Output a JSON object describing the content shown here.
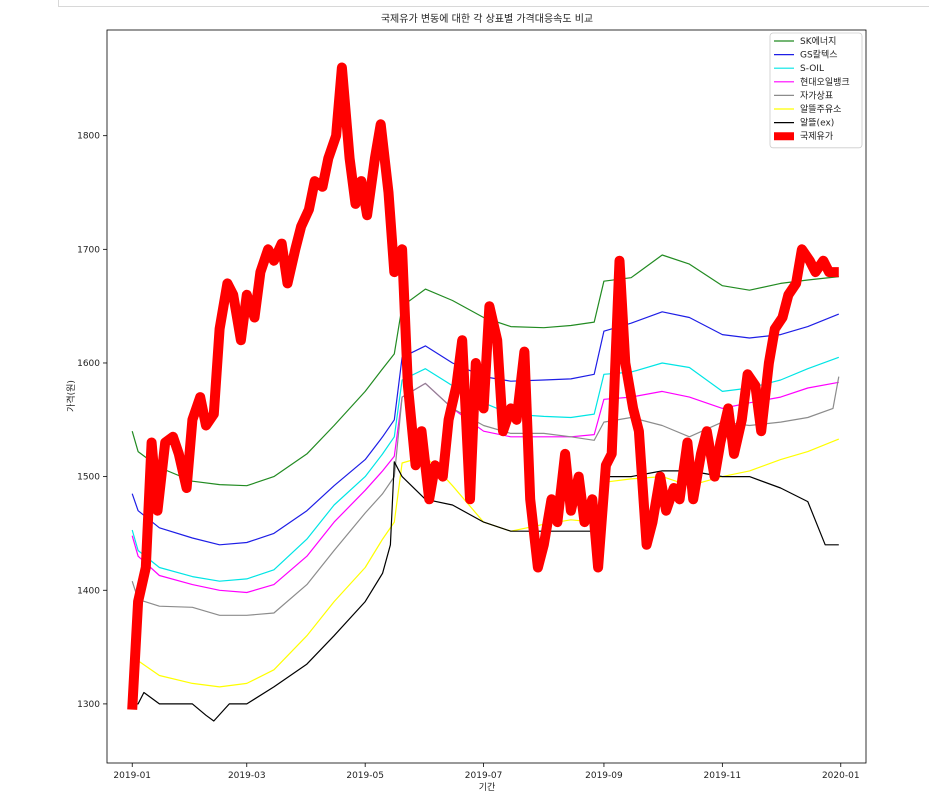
{
  "chart_data": {
    "type": "line",
    "title": "국제유가 변동에 대한 각 상표별 가격대응속도 비교",
    "xlabel": "기간",
    "ylabel": "가격(원)",
    "xlim": [
      "2018-12-19",
      "2020-01-14"
    ],
    "ylim": [
      1248,
      1893
    ],
    "xticks": [
      "2019-01",
      "2019-03",
      "2019-05",
      "2019-07",
      "2019-09",
      "2019-11",
      "2020-01"
    ],
    "yticks": [
      1300,
      1400,
      1500,
      1600,
      1700,
      1800
    ],
    "grid": false,
    "legend_position": "top-right",
    "series": [
      {
        "name": "SK에너지",
        "color": "#228B22",
        "width": 1.2,
        "x": [
          "2019-01-01",
          "2019-01-04",
          "2019-01-15",
          "2019-02-01",
          "2019-02-15",
          "2019-03-01",
          "2019-03-15",
          "2019-04-01",
          "2019-04-15",
          "2019-05-01",
          "2019-05-10",
          "2019-05-16",
          "2019-05-20",
          "2019-06-01",
          "2019-06-15",
          "2019-07-01",
          "2019-07-15",
          "2019-08-01",
          "2019-08-15",
          "2019-08-27",
          "2019-09-01",
          "2019-09-15",
          "2019-10-01",
          "2019-10-15",
          "2019-11-01",
          "2019-11-15",
          "2019-12-01",
          "2019-12-15",
          "2019-12-31"
        ],
        "y": [
          1540,
          1522,
          1508,
          1496,
          1493,
          1492,
          1500,
          1520,
          1545,
          1575,
          1595,
          1608,
          1650,
          1665,
          1655,
          1640,
          1632,
          1631,
          1633,
          1636,
          1672,
          1675,
          1695,
          1687,
          1668,
          1664,
          1670,
          1673,
          1676
        ]
      },
      {
        "name": "GS칼텍스",
        "color": "#1E1EE6",
        "width": 1.2,
        "x": [
          "2019-01-01",
          "2019-01-04",
          "2019-01-15",
          "2019-02-01",
          "2019-02-15",
          "2019-03-01",
          "2019-03-15",
          "2019-04-01",
          "2019-04-15",
          "2019-05-01",
          "2019-05-10",
          "2019-05-16",
          "2019-05-20",
          "2019-06-01",
          "2019-06-15",
          "2019-07-01",
          "2019-07-15",
          "2019-08-01",
          "2019-08-15",
          "2019-08-27",
          "2019-09-01",
          "2019-09-15",
          "2019-10-01",
          "2019-10-15",
          "2019-11-01",
          "2019-11-15",
          "2019-12-01",
          "2019-12-15",
          "2019-12-31"
        ],
        "y": [
          1485,
          1470,
          1455,
          1446,
          1440,
          1442,
          1450,
          1470,
          1492,
          1515,
          1535,
          1550,
          1605,
          1615,
          1600,
          1588,
          1584,
          1585,
          1586,
          1590,
          1628,
          1635,
          1645,
          1640,
          1625,
          1622,
          1625,
          1632,
          1643
        ]
      },
      {
        "name": "S-OIL",
        "color": "#00E5E5",
        "width": 1.2,
        "x": [
          "2019-01-01",
          "2019-01-04",
          "2019-01-15",
          "2019-02-01",
          "2019-02-15",
          "2019-03-01",
          "2019-03-15",
          "2019-04-01",
          "2019-04-15",
          "2019-05-01",
          "2019-05-10",
          "2019-05-16",
          "2019-05-20",
          "2019-06-01",
          "2019-06-15",
          "2019-07-01",
          "2019-07-15",
          "2019-08-01",
          "2019-08-15",
          "2019-08-27",
          "2019-09-01",
          "2019-09-15",
          "2019-10-01",
          "2019-10-15",
          "2019-11-01",
          "2019-11-15",
          "2019-12-01",
          "2019-12-15",
          "2019-12-31"
        ],
        "y": [
          1453,
          1435,
          1420,
          1412,
          1408,
          1410,
          1418,
          1445,
          1475,
          1500,
          1520,
          1535,
          1585,
          1595,
          1580,
          1565,
          1555,
          1553,
          1552,
          1555,
          1590,
          1592,
          1600,
          1596,
          1575,
          1578,
          1585,
          1595,
          1605
        ]
      },
      {
        "name": "현대오일뱅크",
        "color": "#FF00FF",
        "width": 1.2,
        "x": [
          "2019-01-01",
          "2019-01-04",
          "2019-01-15",
          "2019-02-01",
          "2019-02-15",
          "2019-03-01",
          "2019-03-15",
          "2019-04-01",
          "2019-04-15",
          "2019-05-01",
          "2019-05-10",
          "2019-05-16",
          "2019-05-20",
          "2019-06-01",
          "2019-06-15",
          "2019-07-01",
          "2019-07-15",
          "2019-08-01",
          "2019-08-15",
          "2019-08-27",
          "2019-09-01",
          "2019-09-15",
          "2019-10-01",
          "2019-10-15",
          "2019-11-01",
          "2019-11-15",
          "2019-12-01",
          "2019-12-15",
          "2019-12-31"
        ],
        "y": [
          1448,
          1430,
          1413,
          1405,
          1400,
          1398,
          1405,
          1430,
          1460,
          1488,
          1505,
          1518,
          1570,
          1582,
          1560,
          1540,
          1535,
          1535,
          1535,
          1537,
          1568,
          1570,
          1575,
          1570,
          1560,
          1565,
          1570,
          1578,
          1583
        ]
      },
      {
        "name": "자가상표",
        "color": "#8C8C8C",
        "width": 1.2,
        "x": [
          "2019-01-01",
          "2019-01-04",
          "2019-01-15",
          "2019-02-01",
          "2019-02-15",
          "2019-03-01",
          "2019-03-15",
          "2019-04-01",
          "2019-04-15",
          "2019-05-01",
          "2019-05-10",
          "2019-05-16",
          "2019-05-20",
          "2019-06-01",
          "2019-06-15",
          "2019-07-01",
          "2019-07-15",
          "2019-08-01",
          "2019-08-15",
          "2019-08-27",
          "2019-09-01",
          "2019-09-15",
          "2019-10-01",
          "2019-10-15",
          "2019-11-01",
          "2019-11-15",
          "2019-12-01",
          "2019-12-15",
          "2019-12-28",
          "2019-12-31"
        ],
        "y": [
          1408,
          1392,
          1386,
          1385,
          1378,
          1378,
          1380,
          1405,
          1435,
          1468,
          1485,
          1500,
          1570,
          1582,
          1560,
          1545,
          1538,
          1538,
          1535,
          1532,
          1548,
          1552,
          1545,
          1535,
          1548,
          1545,
          1548,
          1552,
          1560,
          1588
        ]
      },
      {
        "name": "알뜰주유소",
        "color": "#FFFF00",
        "width": 1.2,
        "x": [
          "2019-01-01",
          "2019-01-04",
          "2019-01-15",
          "2019-02-01",
          "2019-02-15",
          "2019-03-01",
          "2019-03-15",
          "2019-04-01",
          "2019-04-15",
          "2019-05-01",
          "2019-05-10",
          "2019-05-16",
          "2019-05-20",
          "2019-06-01",
          "2019-06-15",
          "2019-07-01",
          "2019-07-15",
          "2019-08-01",
          "2019-08-15",
          "2019-08-27",
          "2019-09-01",
          "2019-09-15",
          "2019-10-01",
          "2019-10-15",
          "2019-11-01",
          "2019-11-15",
          "2019-12-01",
          "2019-12-15",
          "2019-12-31"
        ],
        "y": [
          1350,
          1338,
          1325,
          1318,
          1315,
          1318,
          1330,
          1360,
          1390,
          1420,
          1445,
          1460,
          1512,
          1518,
          1492,
          1460,
          1452,
          1458,
          1462,
          1460,
          1495,
          1498,
          1500,
          1492,
          1500,
          1505,
          1515,
          1522,
          1533
        ]
      },
      {
        "name": "알뜰(ex)",
        "color": "#000000",
        "width": 1.2,
        "x": [
          "2019-01-01",
          "2019-01-04",
          "2019-01-07",
          "2019-01-15",
          "2019-02-01",
          "2019-02-08",
          "2019-02-12",
          "2019-02-20",
          "2019-03-01",
          "2019-03-15",
          "2019-04-01",
          "2019-04-15",
          "2019-05-01",
          "2019-05-10",
          "2019-05-14",
          "2019-05-16",
          "2019-05-20",
          "2019-06-01",
          "2019-06-15",
          "2019-07-01",
          "2019-07-15",
          "2019-08-01",
          "2019-08-15",
          "2019-08-27",
          "2019-09-01",
          "2019-09-15",
          "2019-10-01",
          "2019-10-15",
          "2019-11-01",
          "2019-11-15",
          "2019-12-01",
          "2019-12-15",
          "2019-12-24",
          "2019-12-31"
        ],
        "y": [
          1300,
          1300,
          1310,
          1300,
          1300,
          1290,
          1285,
          1300,
          1300,
          1315,
          1335,
          1360,
          1390,
          1415,
          1440,
          1513,
          1500,
          1480,
          1475,
          1460,
          1452,
          1452,
          1452,
          1452,
          1500,
          1500,
          1505,
          1505,
          1500,
          1500,
          1490,
          1478,
          1440,
          1440
        ]
      },
      {
        "name": "국제유가",
        "color": "#FF0000",
        "width": 10,
        "x": [
          "2019-01-01",
          "2019-01-04",
          "2019-01-08",
          "2019-01-11",
          "2019-01-14",
          "2019-01-18",
          "2019-01-22",
          "2019-01-25",
          "2019-01-29",
          "2019-02-01",
          "2019-02-05",
          "2019-02-08",
          "2019-02-12",
          "2019-02-15",
          "2019-02-19",
          "2019-02-22",
          "2019-02-26",
          "2019-03-01",
          "2019-03-05",
          "2019-03-08",
          "2019-03-12",
          "2019-03-15",
          "2019-03-19",
          "2019-03-22",
          "2019-03-26",
          "2019-03-29",
          "2019-04-02",
          "2019-04-05",
          "2019-04-09",
          "2019-04-12",
          "2019-04-16",
          "2019-04-19",
          "2019-04-23",
          "2019-04-26",
          "2019-04-29",
          "2019-05-02",
          "2019-05-06",
          "2019-05-09",
          "2019-05-13",
          "2019-05-16",
          "2019-05-20",
          "2019-05-23",
          "2019-05-27",
          "2019-05-30",
          "2019-06-03",
          "2019-06-06",
          "2019-06-10",
          "2019-06-13",
          "2019-06-17",
          "2019-06-20",
          "2019-06-24",
          "2019-06-27",
          "2019-07-01",
          "2019-07-04",
          "2019-07-08",
          "2019-07-11",
          "2019-07-15",
          "2019-07-18",
          "2019-07-22",
          "2019-07-25",
          "2019-07-29",
          "2019-08-01",
          "2019-08-05",
          "2019-08-08",
          "2019-08-12",
          "2019-08-15",
          "2019-08-19",
          "2019-08-22",
          "2019-08-26",
          "2019-08-29",
          "2019-09-02",
          "2019-09-05",
          "2019-09-09",
          "2019-09-12",
          "2019-09-16",
          "2019-09-19",
          "2019-09-23",
          "2019-09-26",
          "2019-09-30",
          "2019-10-03",
          "2019-10-07",
          "2019-10-10",
          "2019-10-14",
          "2019-10-17",
          "2019-10-21",
          "2019-10-24",
          "2019-10-28",
          "2019-10-31",
          "2019-11-04",
          "2019-11-07",
          "2019-11-11",
          "2019-11-14",
          "2019-11-18",
          "2019-11-21",
          "2019-11-25",
          "2019-11-28",
          "2019-12-02",
          "2019-12-05",
          "2019-12-09",
          "2019-12-12",
          "2019-12-16",
          "2019-12-19",
          "2019-12-23",
          "2019-12-26",
          "2019-12-31"
        ],
        "y": [
          1295,
          1390,
          1420,
          1530,
          1470,
          1530,
          1535,
          1520,
          1490,
          1550,
          1570,
          1545,
          1555,
          1630,
          1670,
          1660,
          1620,
          1660,
          1640,
          1680,
          1700,
          1690,
          1705,
          1670,
          1700,
          1720,
          1735,
          1760,
          1755,
          1780,
          1800,
          1860,
          1780,
          1740,
          1760,
          1730,
          1780,
          1810,
          1750,
          1680,
          1700,
          1580,
          1510,
          1540,
          1480,
          1510,
          1500,
          1550,
          1580,
          1620,
          1480,
          1600,
          1560,
          1650,
          1620,
          1540,
          1560,
          1550,
          1610,
          1480,
          1420,
          1440,
          1480,
          1460,
          1520,
          1470,
          1500,
          1460,
          1480,
          1420,
          1510,
          1520,
          1690,
          1600,
          1560,
          1540,
          1440,
          1460,
          1500,
          1470,
          1490,
          1480,
          1530,
          1480,
          1520,
          1540,
          1500,
          1530,
          1560,
          1520,
          1550,
          1590,
          1580,
          1540,
          1600,
          1630,
          1640,
          1660,
          1670,
          1700,
          1690,
          1680,
          1690,
          1680,
          1680
        ]
      }
    ]
  }
}
